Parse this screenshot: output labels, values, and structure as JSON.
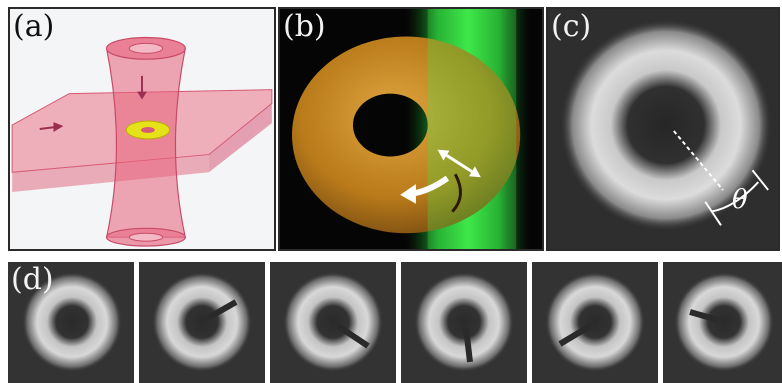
{
  "figure": {
    "panels": [
      {
        "id": "a",
        "label": "(a)"
      },
      {
        "id": "b",
        "label": "(b)"
      },
      {
        "id": "c",
        "label": "(c)",
        "angle_symbol": "θ"
      },
      {
        "id": "d",
        "label": "(d)"
      }
    ],
    "colors": {
      "beam_pink": "#e8607a",
      "torus_orange": "#c98a1c",
      "stirring_beam_green": "#2fdc3c",
      "atoms_gray": "#d0d0d0"
    }
  }
}
